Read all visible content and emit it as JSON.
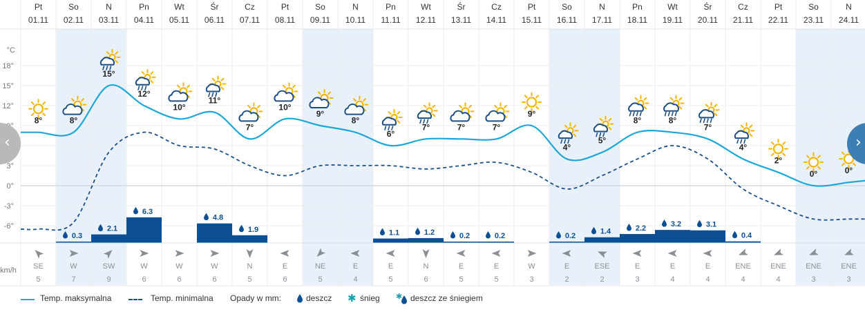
{
  "days": [
    {
      "dow": "Pt",
      "date": "01.11",
      "weekend": false,
      "tmax": 8,
      "tmin": -6.5,
      "icon": "sun",
      "label": "8°",
      "precip": null,
      "wind_dir": "SE",
      "wind_speed": "5"
    },
    {
      "dow": "So",
      "date": "02.11",
      "weekend": true,
      "tmax": 8,
      "tmin": -5.5,
      "icon": "cloud-sun",
      "label": "8°",
      "precip": "0.3",
      "precip_value": 0.3,
      "wind_dir": "W",
      "wind_speed": "7"
    },
    {
      "dow": "N",
      "date": "03.11",
      "weekend": true,
      "tmax": 15,
      "tmin": 5,
      "icon": "sun-cloud-rain",
      "label": "15°",
      "precip": "2.1",
      "precip_value": 2.1,
      "wind_dir": "SW",
      "wind_speed": "9"
    },
    {
      "dow": "Pn",
      "date": "04.11",
      "weekend": false,
      "tmax": 12,
      "tmin": 8,
      "icon": "sun-cloud-rain",
      "label": "12°",
      "precip": "6.3",
      "precip_value": 6.3,
      "wind_dir": "W",
      "wind_speed": "6"
    },
    {
      "dow": "Wt",
      "date": "05.11",
      "weekend": false,
      "tmax": 10,
      "tmin": 6,
      "icon": "cloud-sun",
      "label": "10°",
      "precip": null,
      "wind_dir": "W",
      "wind_speed": "6"
    },
    {
      "dow": "Śr",
      "date": "06.11",
      "weekend": false,
      "tmax": 11,
      "tmin": 5.5,
      "icon": "sun-cloud-rain",
      "label": "11°",
      "precip": "4.8",
      "precip_value": 4.8,
      "wind_dir": "W",
      "wind_speed": "6"
    },
    {
      "dow": "Cz",
      "date": "07.11",
      "weekend": false,
      "tmax": 7,
      "tmin": 3,
      "icon": "cloud-sun",
      "label": "7°",
      "precip": "1.9",
      "precip_value": 1.9,
      "wind_dir": "N",
      "wind_speed": "5"
    },
    {
      "dow": "Pt",
      "date": "08.11",
      "weekend": false,
      "tmax": 10,
      "tmin": 1.5,
      "icon": "cloud-sun",
      "label": "10°",
      "precip": null,
      "wind_dir": "E",
      "wind_speed": "6"
    },
    {
      "dow": "So",
      "date": "09.11",
      "weekend": true,
      "tmax": 9,
      "tmin": 3,
      "icon": "cloud-sun",
      "label": "9°",
      "precip": null,
      "wind_dir": "NE",
      "wind_speed": "5"
    },
    {
      "dow": "N",
      "date": "10.11",
      "weekend": true,
      "tmax": 8,
      "tmin": 3,
      "icon": "cloud-sun",
      "label": "8°",
      "precip": null,
      "wind_dir": "E",
      "wind_speed": "4"
    },
    {
      "dow": "Pn",
      "date": "11.11",
      "weekend": false,
      "tmax": 6,
      "tmin": 3,
      "icon": "sun-cloud-rain",
      "label": "6°",
      "precip": "1.1",
      "precip_value": 1.1,
      "wind_dir": "E",
      "wind_speed": "5"
    },
    {
      "dow": "Wt",
      "date": "12.11",
      "weekend": false,
      "tmax": 7,
      "tmin": 2.5,
      "icon": "sun-cloud-rain",
      "label": "7°",
      "precip": "1.2",
      "precip_value": 1.2,
      "wind_dir": "N",
      "wind_speed": "6"
    },
    {
      "dow": "Śr",
      "date": "13.11",
      "weekend": false,
      "tmax": 7,
      "tmin": 3,
      "icon": "cloud-sun",
      "label": "7°",
      "precip": "0.2",
      "precip_value": 0.2,
      "wind_dir": "E",
      "wind_speed": "5"
    },
    {
      "dow": "Cz",
      "date": "14.11",
      "weekend": false,
      "tmax": 7,
      "tmin": 3.5,
      "icon": "cloud-sun",
      "label": "7°",
      "precip": "0.2",
      "precip_value": 0.2,
      "wind_dir": "E",
      "wind_speed": "5"
    },
    {
      "dow": "Pt",
      "date": "15.11",
      "weekend": false,
      "tmax": 9,
      "tmin": 2,
      "icon": "sun",
      "label": "9°",
      "precip": null,
      "wind_dir": "W",
      "wind_speed": "3"
    },
    {
      "dow": "So",
      "date": "16.11",
      "weekend": true,
      "tmax": 4,
      "tmin": -0.5,
      "icon": "sun-cloud-rain",
      "label": "4°",
      "precip": "0.2",
      "precip_value": 0.2,
      "wind_dir": "E",
      "wind_speed": "2"
    },
    {
      "dow": "N",
      "date": "17.11",
      "weekend": true,
      "tmax": 5,
      "tmin": 1.5,
      "icon": "sun-cloud-rain",
      "label": "5°",
      "precip": "1.4",
      "precip_value": 1.4,
      "wind_dir": "ESE",
      "wind_speed": "2"
    },
    {
      "dow": "Pn",
      "date": "18.11",
      "weekend": false,
      "tmax": 8,
      "tmin": 4,
      "icon": "sun-cloud-heavy-rain",
      "label": "8°",
      "precip": "2.2",
      "precip_value": 2.2,
      "wind_dir": "E",
      "wind_speed": "3"
    },
    {
      "dow": "Wt",
      "date": "19.11",
      "weekend": false,
      "tmax": 8,
      "tmin": 6,
      "icon": "sun-cloud-heavy-rain",
      "label": "8°",
      "precip": "3.2",
      "precip_value": 3.2,
      "wind_dir": "E",
      "wind_speed": "4"
    },
    {
      "dow": "Śr",
      "date": "20.11",
      "weekend": false,
      "tmax": 7,
      "tmin": 4,
      "icon": "sun-cloud-heavy-rain",
      "label": "7°",
      "precip": "3.1",
      "precip_value": 3.1,
      "wind_dir": "E",
      "wind_speed": "4"
    },
    {
      "dow": "Cz",
      "date": "21.11",
      "weekend": false,
      "tmax": 4,
      "tmin": -0.5,
      "icon": "sun-cloud-rain",
      "label": "4°",
      "precip": "0.4",
      "precip_value": 0.4,
      "wind_dir": "ENE",
      "wind_speed": "4"
    },
    {
      "dow": "Pt",
      "date": "22.11",
      "weekend": false,
      "tmax": 2,
      "tmin": -3,
      "icon": "sun",
      "label": "2°",
      "precip": null,
      "wind_dir": "ENE",
      "wind_speed": "4"
    },
    {
      "dow": "So",
      "date": "23.11",
      "weekend": true,
      "tmax": 0,
      "tmin": -5,
      "icon": "sun",
      "label": "0°",
      "precip": null,
      "wind_dir": "ENE",
      "wind_speed": "3"
    },
    {
      "dow": "N",
      "date": "24.11",
      "weekend": true,
      "tmax": 0.5,
      "tmin": -5,
      "icon": "sun",
      "label": "0°",
      "precip": null,
      "wind_dir": "ENE",
      "wind_speed": "3"
    }
  ],
  "axis": {
    "unit_label": "°C",
    "ticks": [
      "18°",
      "15°",
      "12°",
      "9°",
      "6°",
      "3°",
      "0°",
      "-3°",
      "-6°"
    ],
    "tick_values": [
      18,
      15,
      12,
      9,
      6,
      3,
      0,
      -3,
      -6
    ],
    "wind_unit": "km/h"
  },
  "colors": {
    "max_line": "#1aa7d9",
    "min_line": "#1a4f8a",
    "precip_bar": "#0d4f95",
    "weekend_band": "#e8f1fa",
    "grid": "#e5e5e5",
    "sun": "#f5b400",
    "cloud": "#1b4f86"
  },
  "legend": {
    "max": "Temp. maksymalna",
    "min": "Temp. minimalna",
    "precip_title": "Opady w mm:",
    "rain": "deszcz",
    "snow": "śnieg",
    "mixed": "deszcz ze śniegiem"
  },
  "nav": {
    "prev": "‹",
    "next": "›"
  },
  "chart_data": {
    "type": "line",
    "categories": [
      "01.11",
      "02.11",
      "03.11",
      "04.11",
      "05.11",
      "06.11",
      "07.11",
      "08.11",
      "09.11",
      "10.11",
      "11.11",
      "12.11",
      "13.11",
      "14.11",
      "15.11",
      "16.11",
      "17.11",
      "18.11",
      "19.11",
      "20.11",
      "21.11",
      "22.11",
      "23.11",
      "24.11"
    ],
    "series": [
      {
        "name": "Temp. maksymalna",
        "values": [
          8,
          8,
          15,
          12,
          10,
          11,
          7,
          10,
          9,
          8,
          6,
          7,
          7,
          7,
          9,
          4,
          5,
          8,
          8,
          7,
          4,
          2,
          0,
          0.5
        ]
      },
      {
        "name": "Temp. minimalna",
        "values": [
          -6.5,
          -5.5,
          5,
          8,
          6,
          5.5,
          3,
          1.5,
          3,
          3,
          3,
          2.5,
          3,
          3.5,
          2,
          -0.5,
          1.5,
          4,
          6,
          4,
          -0.5,
          -3,
          -5,
          -5
        ]
      },
      {
        "name": "Opady w mm",
        "values": [
          0,
          0.3,
          2.1,
          6.3,
          0,
          4.8,
          1.9,
          0,
          0,
          0,
          1.1,
          1.2,
          0.2,
          0.2,
          0,
          0.2,
          1.4,
          2.2,
          3.2,
          3.1,
          0.4,
          0,
          0,
          0
        ]
      }
    ],
    "ylabel": "°C",
    "ylim": [
      -7,
      20
    ],
    "grid": true,
    "legend": "bottom"
  }
}
